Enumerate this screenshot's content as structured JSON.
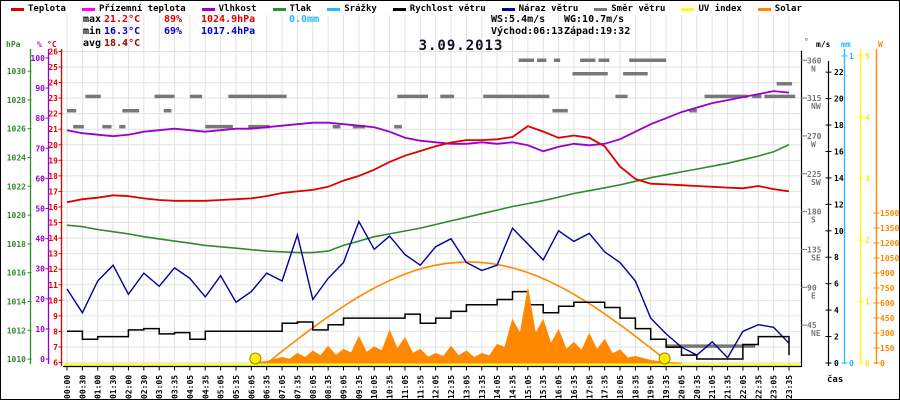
{
  "legend": {
    "items": [
      {
        "label": "Teplota",
        "color": "#dd0000"
      },
      {
        "label": "Přízemní teplota",
        "color": "#ff00ff"
      },
      {
        "label": "Vlhkost",
        "color": "#9900cc"
      },
      {
        "label": "Tlak",
        "color": "#2e8b2e"
      },
      {
        "label": "Srážky",
        "color": "#22bbff"
      },
      {
        "label": "Rychlost větru",
        "color": "#000000"
      },
      {
        "label": "Náraz větru",
        "color": "#000099"
      },
      {
        "label": "Směr větru",
        "color": "#787878"
      },
      {
        "label": "UV index",
        "color": "#ffff00"
      },
      {
        "label": "Solar",
        "color": "#ff8800"
      }
    ]
  },
  "stats": {
    "max_label": "max",
    "max_temp": "21.2°C",
    "max_hum": "89%",
    "max_pres": "1024.9hPa",
    "rain": "0.0mm",
    "min_label": "min",
    "min_temp": "16.3°C",
    "min_hum": "69%",
    "min_pres": "1017.4hPa",
    "avg_label": "avg",
    "avg_temp": "18.4°C",
    "ws": "WS:5.4m/s",
    "wg": "WG:10.7m/s",
    "sunrise": "Východ:06:13",
    "sunset": "Západ:19:32"
  },
  "axes": {
    "pressure": {
      "unit": "hPa",
      "color": "#2e8b2e",
      "range": [
        1009.73,
        1031.4
      ],
      "ticks": [
        1010,
        1012,
        1014,
        1016,
        1018,
        1020,
        1022,
        1024,
        1026,
        1028,
        1030
      ]
    },
    "humidity": {
      "unit": "%",
      "color": "#9900cc",
      "range": [
        -1.3,
        102.3
      ],
      "ticks": [
        0,
        10,
        20,
        30,
        40,
        50,
        60,
        70,
        80,
        90,
        100
      ]
    },
    "temperature": {
      "unit": "°C",
      "color": "#dd0000",
      "range": [
        5.97,
        26.03
      ],
      "ticks": [
        6,
        7,
        8,
        9,
        10,
        11,
        12,
        13,
        14,
        15,
        16,
        17,
        18,
        19,
        20,
        21,
        22,
        23,
        24,
        25,
        26
      ]
    },
    "direction": {
      "unit": "°",
      "color": "#787878",
      "range": [
        0,
        371
      ],
      "ticks": [
        {
          "deg": 360,
          "name": "N"
        },
        {
          "deg": 315,
          "name": "NW"
        },
        {
          "deg": 270,
          "name": "W"
        },
        {
          "deg": 225,
          "name": "SW"
        },
        {
          "deg": 180,
          "name": "S"
        },
        {
          "deg": 135,
          "name": "SE"
        },
        {
          "deg": 90,
          "name": "E"
        },
        {
          "deg": 45,
          "name": "NE"
        }
      ]
    },
    "wind": {
      "unit": "m/s",
      "color": "#000000",
      "range": [
        0,
        23.6
      ],
      "ticks": [
        0,
        2,
        4,
        6,
        8,
        10,
        12,
        14,
        16,
        18,
        20,
        22
      ]
    },
    "rain": {
      "unit": "mm",
      "color": "#22bbff",
      "range": [
        0,
        1.016
      ],
      "ticks": [
        0,
        1
      ]
    },
    "uv": {
      "unit": "",
      "color": "#ffff00",
      "range": [
        0,
        5.08
      ],
      "ticks": [
        0,
        1,
        2,
        3,
        4,
        5
      ]
    },
    "solar": {
      "unit": "W",
      "color": "#ff8800",
      "range": [
        0,
        3120
      ],
      "ticks": [
        0,
        150,
        300,
        450,
        600,
        750,
        900,
        1050,
        1200,
        1350,
        1500
      ]
    }
  },
  "x_axis": {
    "label": "čas",
    "categories": [
      "00:00",
      "00:30",
      "01:00",
      "01:30",
      "02:00",
      "02:30",
      "03:05",
      "03:35",
      "04:05",
      "04:35",
      "05:05",
      "05:35",
      "06:05",
      "06:35",
      "07:05",
      "07:35",
      "08:05",
      "08:35",
      "09:05",
      "09:35",
      "10:05",
      "10:35",
      "11:05",
      "11:35",
      "12:05",
      "12:35",
      "13:05",
      "13:35",
      "14:05",
      "14:35",
      "15:05",
      "15:35",
      "16:05",
      "16:35",
      "17:05",
      "17:35",
      "18:05",
      "18:35",
      "19:05",
      "19:35",
      "20:05",
      "20:35",
      "21:05",
      "21:35",
      "22:05",
      "22:35",
      "23:05",
      "23:35"
    ]
  },
  "chart_data": {
    "type": "line",
    "title": "3.09.2013",
    "categories": [
      "00:00",
      "00:30",
      "01:00",
      "01:30",
      "02:00",
      "02:30",
      "03:05",
      "03:35",
      "04:05",
      "04:35",
      "05:05",
      "05:35",
      "06:05",
      "06:35",
      "07:05",
      "07:35",
      "08:05",
      "08:35",
      "09:05",
      "09:35",
      "10:05",
      "10:35",
      "11:05",
      "11:35",
      "12:05",
      "12:35",
      "13:05",
      "13:35",
      "14:05",
      "14:35",
      "15:05",
      "15:35",
      "16:05",
      "16:35",
      "17:05",
      "17:35",
      "18:05",
      "18:35",
      "19:05",
      "19:35",
      "20:05",
      "20:35",
      "21:05",
      "21:35",
      "22:05",
      "22:35",
      "23:05",
      "23:35"
    ],
    "series": [
      {
        "key": "temperature",
        "name": "Teplota",
        "unit": "°C",
        "axis": "temperature",
        "color": "#dd0000",
        "values": [
          16.3,
          16.5,
          16.6,
          16.75,
          16.7,
          16.55,
          16.45,
          16.4,
          16.4,
          16.4,
          16.45,
          16.5,
          16.55,
          16.7,
          16.9,
          17.0,
          17.1,
          17.3,
          17.7,
          18.0,
          18.4,
          18.9,
          19.3,
          19.6,
          19.9,
          20.15,
          20.3,
          20.3,
          20.35,
          20.5,
          21.2,
          20.85,
          20.45,
          20.6,
          20.45,
          19.9,
          18.6,
          17.8,
          17.5,
          17.45,
          17.4,
          17.35,
          17.3,
          17.25,
          17.2,
          17.35,
          17.15,
          17.0
        ]
      },
      {
        "key": "humidity",
        "name": "Vlhkost",
        "unit": "%",
        "axis": "humidity",
        "color": "#9900cc",
        "values": [
          76,
          75,
          74.5,
          74,
          74.5,
          75.5,
          76,
          76.5,
          76,
          75.5,
          76,
          76.5,
          76.5,
          77,
          77.5,
          78,
          78.5,
          78.5,
          78,
          77.5,
          77,
          75.5,
          73.5,
          72.5,
          72,
          71.5,
          71.5,
          72,
          71.5,
          72,
          71,
          69,
          70.5,
          71.5,
          71,
          71.5,
          73,
          75.5,
          78,
          80,
          82,
          83.5,
          85,
          86,
          87,
          88,
          89,
          88.5
        ]
      },
      {
        "key": "pressure",
        "name": "Tlak",
        "unit": "hPa",
        "axis": "pressure",
        "color": "#2e8b2e",
        "values": [
          1019.3,
          1019.2,
          1019.0,
          1018.85,
          1018.7,
          1018.5,
          1018.35,
          1018.2,
          1018.05,
          1017.9,
          1017.8,
          1017.7,
          1017.6,
          1017.5,
          1017.45,
          1017.4,
          1017.4,
          1017.5,
          1017.9,
          1018.2,
          1018.5,
          1018.7,
          1018.9,
          1019.1,
          1019.35,
          1019.6,
          1019.85,
          1020.1,
          1020.35,
          1020.6,
          1020.8,
          1021.0,
          1021.25,
          1021.5,
          1021.7,
          1021.9,
          1022.1,
          1022.35,
          1022.6,
          1022.8,
          1023.0,
          1023.2,
          1023.4,
          1023.6,
          1023.85,
          1024.1,
          1024.4,
          1024.9
        ]
      },
      {
        "key": "wind_gust",
        "name": "Náraz větru",
        "unit": "m/s",
        "axis": "wind",
        "color": "#000099",
        "values": [
          5.6,
          3.8,
          6.2,
          7.4,
          5.2,
          6.8,
          5.8,
          7.2,
          6.4,
          5.0,
          6.6,
          4.6,
          5.4,
          6.8,
          6.2,
          9.7,
          4.8,
          6.4,
          7.6,
          10.7,
          8.6,
          9.6,
          8.2,
          7.4,
          8.8,
          9.4,
          7.6,
          7.0,
          7.4,
          10.2,
          9.0,
          7.8,
          10.0,
          9.2,
          9.8,
          8.4,
          7.6,
          6.2,
          3.4,
          2.2,
          1.2,
          0.6,
          1.6,
          0.4,
          2.4,
          2.9,
          2.7,
          1.5
        ]
      },
      {
        "key": "wind_speed",
        "name": "Rychlost větru",
        "unit": "m/s",
        "axis": "wind",
        "color": "#000000",
        "style": "step",
        "values": [
          2.4,
          1.8,
          2.0,
          2.0,
          2.5,
          2.6,
          2.2,
          2.3,
          1.8,
          2.4,
          2.4,
          2.4,
          2.4,
          2.4,
          3.0,
          3.1,
          2.5,
          2.9,
          3.4,
          3.4,
          3.4,
          3.4,
          3.7,
          3.0,
          3.4,
          3.9,
          4.4,
          4.4,
          4.8,
          5.4,
          4.4,
          3.8,
          4.3,
          4.6,
          4.6,
          4.2,
          3.4,
          2.6,
          1.8,
          1.2,
          0.6,
          0.3,
          0.3,
          0.3,
          1.4,
          2.0,
          2.0,
          0.6
        ]
      },
      {
        "key": "solar",
        "name": "Solar",
        "unit": "W",
        "axis": "solar",
        "color": "#ff8800",
        "type": "area",
        "values": [
          0,
          0,
          0,
          0,
          0,
          0,
          0,
          0,
          0,
          0,
          0,
          0,
          0,
          15,
          55,
          95,
          120,
          165,
          135,
          260,
          160,
          320,
          250,
          135,
          95,
          165,
          120,
          95,
          185,
          430,
          740,
          430,
          330,
          205,
          290,
          235,
          130,
          65,
          25,
          5,
          0,
          0,
          0,
          0,
          0,
          0,
          0,
          0
        ]
      }
    ],
    "solar_theoretical": {
      "start_hour": 6.6,
      "end_hour": 19.7,
      "peak_w": 1010
    },
    "uv_index_constant": 0,
    "rain_constant_mm": 0.0,
    "wind_direction_unit": "°",
    "wind_direction_segments": [
      {
        "from": 0.0,
        "to": 0.6,
        "deg": 300
      },
      {
        "from": 0.4,
        "to": 1.1,
        "deg": 281
      },
      {
        "from": 1.2,
        "to": 2.2,
        "deg": 317
      },
      {
        "from": 2.3,
        "to": 2.9,
        "deg": 281
      },
      {
        "from": 3.4,
        "to": 3.8,
        "deg": 281
      },
      {
        "from": 3.6,
        "to": 4.7,
        "deg": 300
      },
      {
        "from": 5.7,
        "to": 7.0,
        "deg": 317
      },
      {
        "from": 6.3,
        "to": 6.8,
        "deg": 300
      },
      {
        "from": 8.0,
        "to": 8.8,
        "deg": 317
      },
      {
        "from": 9.0,
        "to": 10.8,
        "deg": 281
      },
      {
        "from": 10.5,
        "to": 14.3,
        "deg": 317
      },
      {
        "from": 11.8,
        "to": 13.2,
        "deg": 281
      },
      {
        "from": 17.3,
        "to": 17.8,
        "deg": 281
      },
      {
        "from": 18.6,
        "to": 19.4,
        "deg": 281
      },
      {
        "from": 21.3,
        "to": 21.8,
        "deg": 281
      },
      {
        "from": 21.5,
        "to": 23.5,
        "deg": 317
      },
      {
        "from": 24.3,
        "to": 25.2,
        "deg": 317
      },
      {
        "from": 27.1,
        "to": 31.4,
        "deg": 317
      },
      {
        "from": 29.4,
        "to": 30.4,
        "deg": 360
      },
      {
        "from": 30.6,
        "to": 31.2,
        "deg": 360
      },
      {
        "from": 31.6,
        "to": 32.6,
        "deg": 300
      },
      {
        "from": 31.7,
        "to": 32.1,
        "deg": 360
      },
      {
        "from": 32.9,
        "to": 35.2,
        "deg": 344
      },
      {
        "from": 33.4,
        "to": 34.4,
        "deg": 360
      },
      {
        "from": 34.6,
        "to": 35.3,
        "deg": 360
      },
      {
        "from": 35.7,
        "to": 36.5,
        "deg": 317
      },
      {
        "from": 36.2,
        "to": 37.8,
        "deg": 344
      },
      {
        "from": 36.6,
        "to": 39.0,
        "deg": 360
      },
      {
        "from": 39.0,
        "to": 44.8,
        "deg": 20
      },
      {
        "from": 40.5,
        "to": 41.0,
        "deg": 300
      },
      {
        "from": 41.5,
        "to": 44.3,
        "deg": 317
      },
      {
        "from": 44.6,
        "to": 45.2,
        "deg": 317
      },
      {
        "from": 45.4,
        "to": 47.4,
        "deg": 317
      },
      {
        "from": 46.2,
        "to": 47.2,
        "deg": 332
      }
    ],
    "sun_markers": {
      "sunrise": "06:13",
      "sunset": "19:32"
    }
  }
}
